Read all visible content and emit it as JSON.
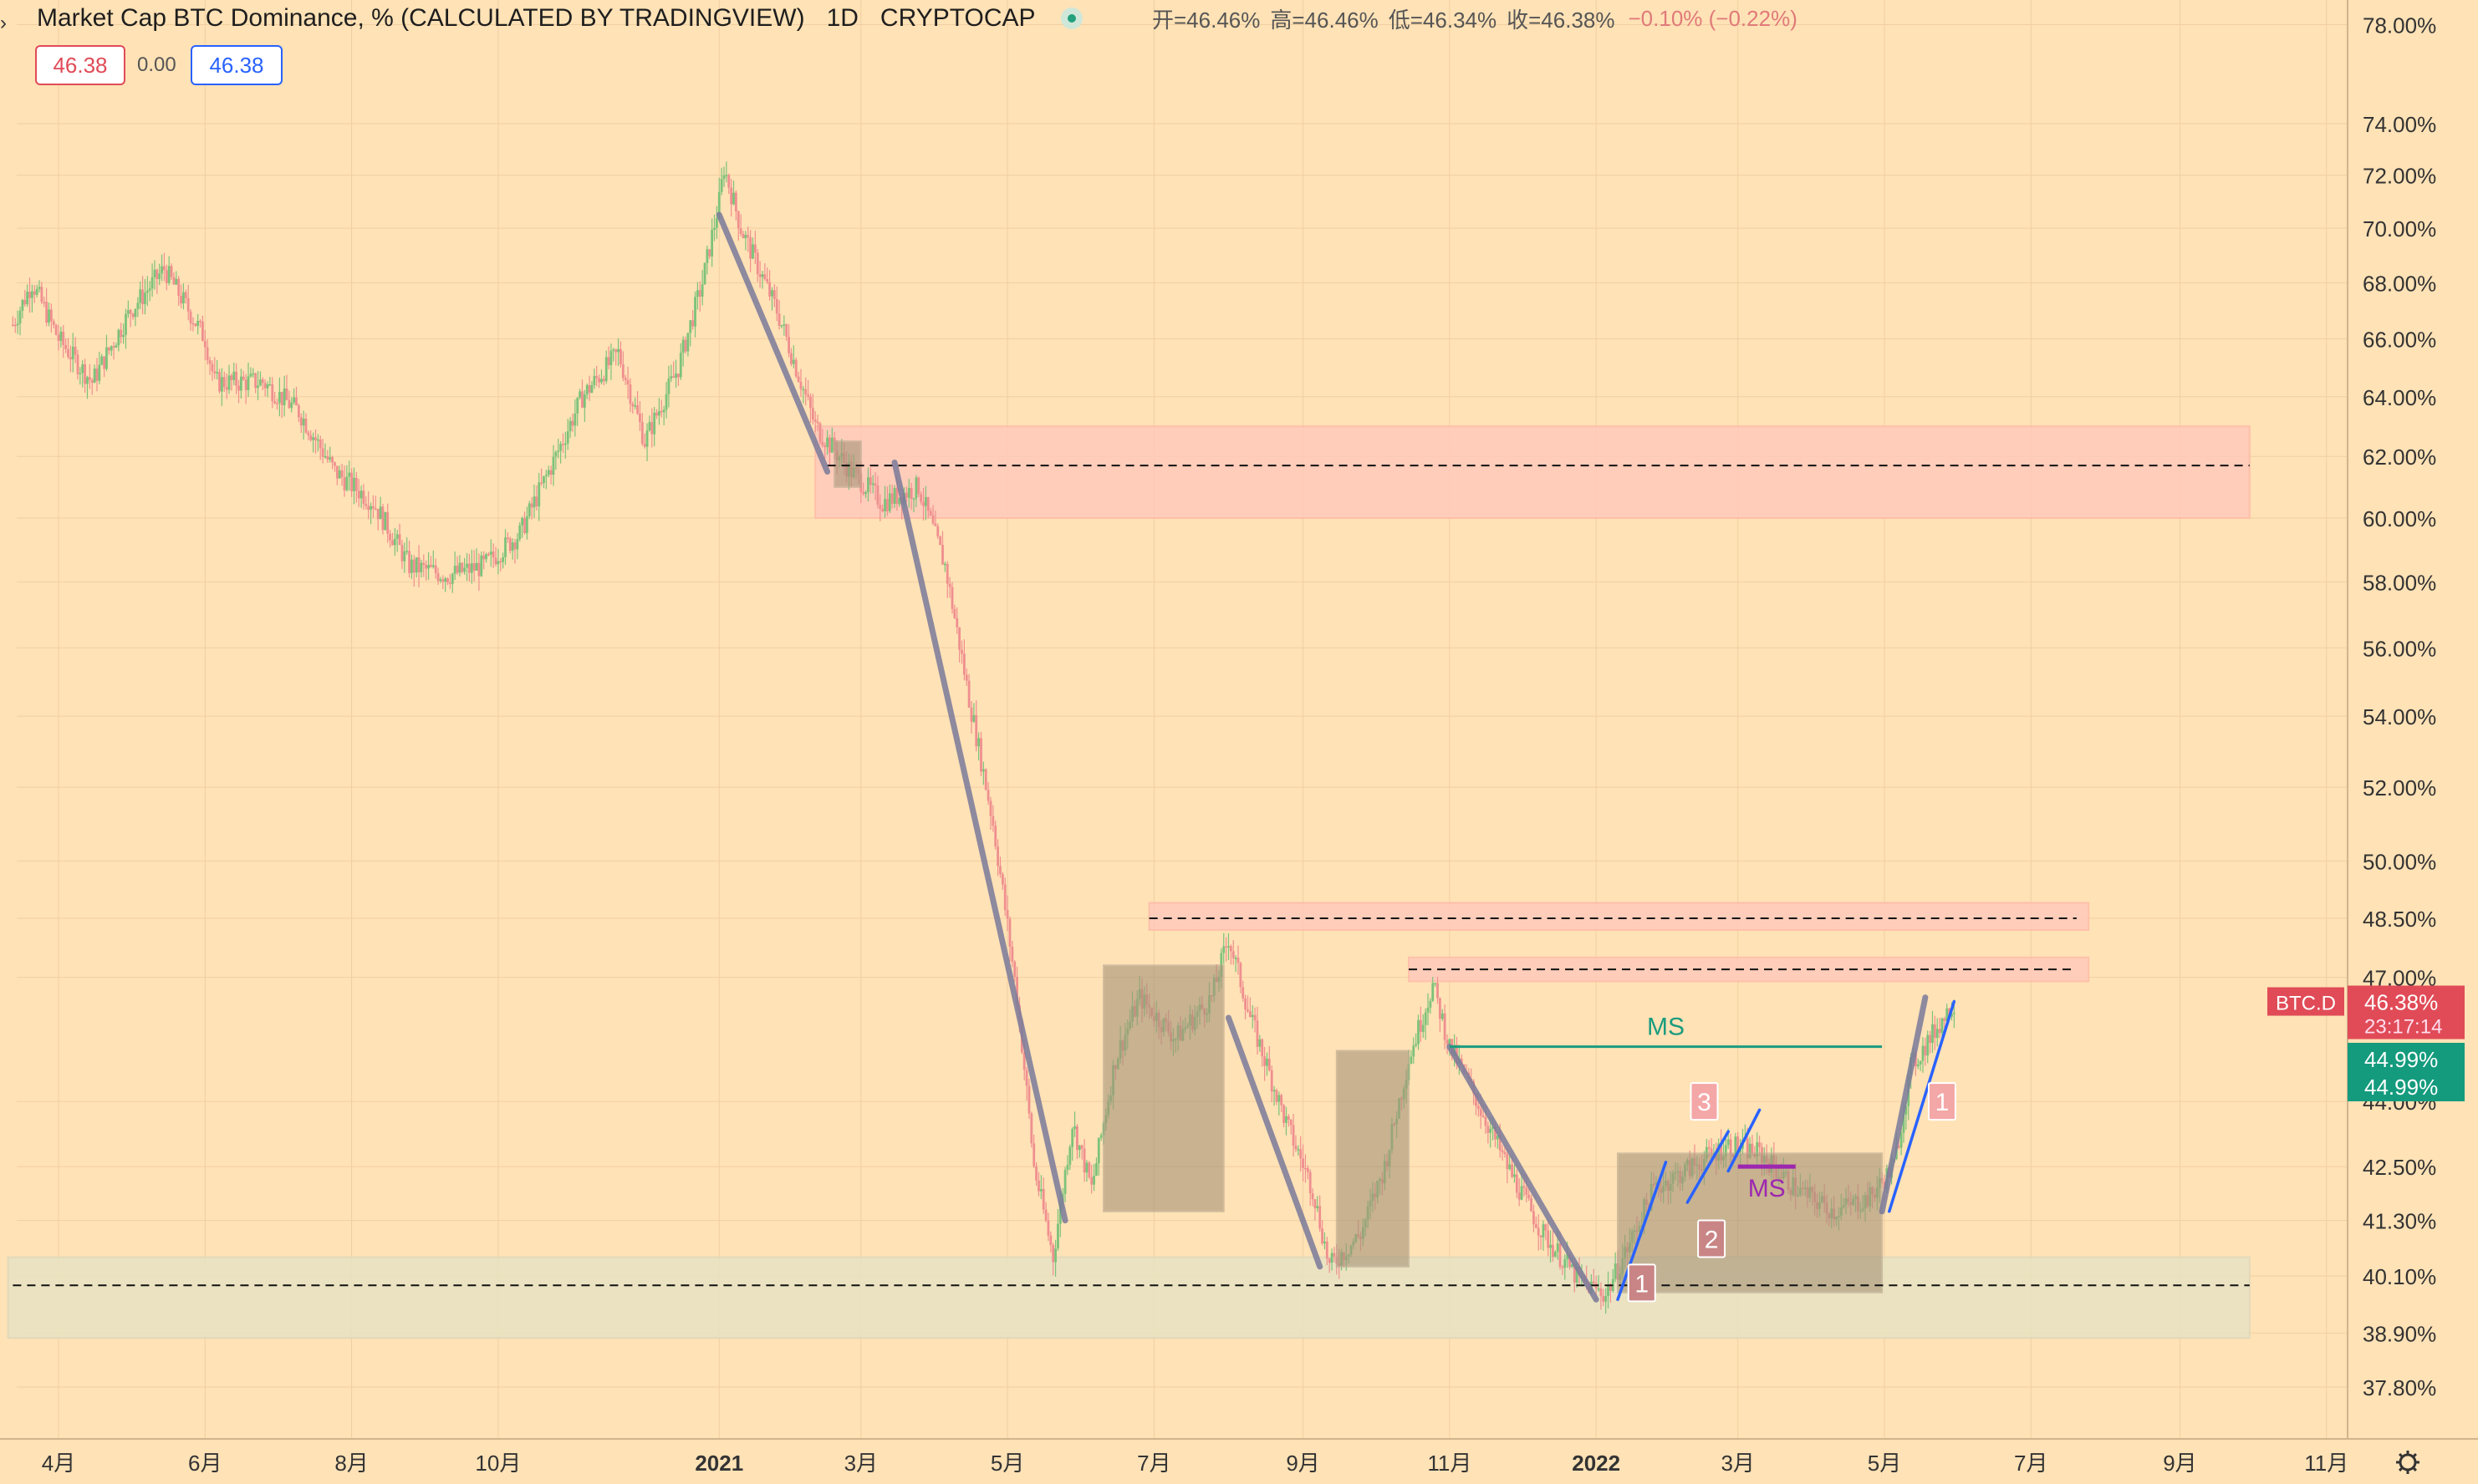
{
  "header": {
    "title": "Market Cap BTC Dominance, % (CALCULATED BY TRADINGVIEW)",
    "interval": "1D",
    "exchange": "CRYPTOCAP",
    "open_label": "开=46.46%",
    "high_label": "高=46.46%",
    "low_label": "低=46.34%",
    "close_label": "收=46.38%",
    "change": "−0.10% (−0.22%)"
  },
  "price_boxes": {
    "sell": "46.38",
    "spread": "0.00",
    "buy": "46.38"
  },
  "price_tags": {
    "symbol": "BTC.D",
    "last": "46.38%",
    "countdown": "23:17:14",
    "ma1": "44.99%",
    "ma2": "44.99%"
  },
  "annotations": {
    "ms_top": "MS",
    "ms_mid": "MS",
    "n1a": "1",
    "n2": "2",
    "n3": "3",
    "n1b": "1"
  },
  "colors": {
    "background": "#ffe2b6",
    "up_candle": "#7cc27a",
    "down_candle": "#ef8f8f",
    "resistance_zone": "#ffc9bb",
    "support_zone": "#e8e3c3",
    "consolidation_box": "#a8957a",
    "trend_line": "#7a7a9a",
    "wave_line": "#2962ff",
    "ms_line_green": "#1a9c7f",
    "ms_line_purple": "#9c27b0",
    "label_red": "#e04b57",
    "label_green": "#149b7d"
  },
  "chart_data": {
    "type": "candlestick",
    "symbol": "BTC.D",
    "scale": "log",
    "y_ticks": [
      "78.00%",
      "74.00%",
      "72.00%",
      "70.00%",
      "68.00%",
      "66.00%",
      "64.00%",
      "62.00%",
      "60.00%",
      "58.00%",
      "56.00%",
      "54.00%",
      "52.00%",
      "50.00%",
      "48.50%",
      "47.00%",
      "44.00%",
      "42.50%",
      "41.30%",
      "40.10%",
      "38.90%",
      "37.80%"
    ],
    "x_ticks": [
      {
        "label": "4月",
        "date": "2020-04-01"
      },
      {
        "label": "6月",
        "date": "2020-06-01"
      },
      {
        "label": "8月",
        "date": "2020-08-01"
      },
      {
        "label": "10月",
        "date": "2020-10-01"
      },
      {
        "label": "2021",
        "date": "2021-01-01",
        "bold": true
      },
      {
        "label": "3月",
        "date": "2021-03-01"
      },
      {
        "label": "5月",
        "date": "2021-05-01"
      },
      {
        "label": "7月",
        "date": "2021-07-01"
      },
      {
        "label": "9月",
        "date": "2021-09-01"
      },
      {
        "label": "11月",
        "date": "2021-11-01"
      },
      {
        "label": "2022",
        "date": "2022-01-01",
        "bold": true
      },
      {
        "label": "3月",
        "date": "2022-03-01"
      },
      {
        "label": "5月",
        "date": "2022-05-01"
      },
      {
        "label": "7月",
        "date": "2022-07-01"
      },
      {
        "label": "9月",
        "date": "2022-09-01"
      },
      {
        "label": "11月",
        "date": "2022-11-01"
      }
    ],
    "price_path": [
      [
        "2020-03-13",
        66.5
      ],
      [
        "2020-03-21",
        68.0
      ],
      [
        "2020-04-01",
        66.0
      ],
      [
        "2020-04-15",
        64.5
      ],
      [
        "2020-05-01",
        67.0
      ],
      [
        "2020-05-15",
        68.5
      ],
      [
        "2020-06-01",
        66.0
      ],
      [
        "2020-06-05",
        64.5
      ],
      [
        "2020-06-25",
        64.5
      ],
      [
        "2020-07-10",
        63.5
      ],
      [
        "2020-07-25",
        61.5
      ],
      [
        "2020-08-10",
        60.5
      ],
      [
        "2020-08-25",
        58.5
      ],
      [
        "2020-09-10",
        58.2
      ],
      [
        "2020-09-25",
        58.5
      ],
      [
        "2020-10-10",
        59.5
      ],
      [
        "2020-10-25",
        62.0
      ],
      [
        "2020-11-05",
        64.0
      ],
      [
        "2020-11-20",
        65.5
      ],
      [
        "2020-12-01",
        62.5
      ],
      [
        "2020-12-15",
        65.0
      ],
      [
        "2020-12-25",
        68.0
      ],
      [
        "2021-01-01",
        71.0
      ],
      [
        "2021-01-03",
        72.3
      ],
      [
        "2021-01-10",
        70.0
      ],
      [
        "2021-01-25",
        67.0
      ],
      [
        "2021-02-10",
        63.0
      ],
      [
        "2021-02-25",
        61.5
      ],
      [
        "2021-03-10",
        60.5
      ],
      [
        "2021-03-25",
        61.0
      ],
      [
        "2021-04-05",
        58.5
      ],
      [
        "2021-04-15",
        54.5
      ],
      [
        "2021-04-25",
        51.0
      ],
      [
        "2021-05-05",
        46.5
      ],
      [
        "2021-05-12",
        42.5
      ],
      [
        "2021-05-20",
        40.5
      ],
      [
        "2021-05-28",
        43.5
      ],
      [
        "2021-06-05",
        42.0
      ],
      [
        "2021-06-15",
        45.0
      ],
      [
        "2021-06-25",
        46.5
      ],
      [
        "2021-07-10",
        45.5
      ],
      [
        "2021-07-25",
        46.5
      ],
      [
        "2021-08-01",
        48.0
      ],
      [
        "2021-08-10",
        46.0
      ],
      [
        "2021-08-25",
        43.5
      ],
      [
        "2021-09-05",
        42.0
      ],
      [
        "2021-09-12",
        40.3
      ],
      [
        "2021-09-25",
        41.0
      ],
      [
        "2021-10-05",
        42.5
      ],
      [
        "2021-10-15",
        45.0
      ],
      [
        "2021-10-25",
        46.8
      ],
      [
        "2021-11-01",
        45.3
      ],
      [
        "2021-11-10",
        44.3
      ],
      [
        "2021-11-25",
        42.5
      ],
      [
        "2021-12-10",
        41.0
      ],
      [
        "2021-12-25",
        40.0
      ],
      [
        "2022-01-05",
        39.7
      ],
      [
        "2022-01-15",
        40.8
      ],
      [
        "2022-01-25",
        42.0
      ],
      [
        "2022-02-10",
        42.5
      ],
      [
        "2022-02-25",
        43.0
      ],
      [
        "2022-03-10",
        42.8
      ],
      [
        "2022-03-25",
        42.0
      ],
      [
        "2022-04-10",
        41.5
      ],
      [
        "2022-04-25",
        41.8
      ],
      [
        "2022-05-05",
        42.5
      ],
      [
        "2022-05-12",
        44.8
      ],
      [
        "2022-05-20",
        45.5
      ],
      [
        "2022-05-30",
        46.4
      ]
    ],
    "zones": [
      {
        "from": "2021-02-10",
        "to": "2022-09-30",
        "top": 63.0,
        "bottom": 60.0,
        "kind": "resistance"
      },
      {
        "from": "2021-06-29",
        "to": "2022-07-25",
        "top": 48.9,
        "bottom": 48.2,
        "kind": "resistance"
      },
      {
        "from": "2021-10-15",
        "to": "2022-07-25",
        "top": 47.5,
        "bottom": 46.9,
        "kind": "resistance"
      },
      {
        "from": "2020-03-11",
        "to": "2022-09-30",
        "top": 40.5,
        "bottom": 38.8,
        "kind": "support"
      }
    ],
    "boxes": [
      {
        "from": "2021-02-18",
        "to": "2021-03-01",
        "top": 62.5,
        "bottom": 61.0
      },
      {
        "from": "2021-06-10",
        "to": "2021-07-30",
        "top": 47.3,
        "bottom": 41.5
      },
      {
        "from": "2021-09-15",
        "to": "2021-10-15",
        "top": 45.2,
        "bottom": 40.3
      },
      {
        "from": "2022-01-10",
        "to": "2022-04-30",
        "top": 42.8,
        "bottom": 39.75
      }
    ],
    "levels": [
      {
        "value": 61.7,
        "from": "2021-02-15",
        "to": "2022-09-30"
      },
      {
        "value": 48.5,
        "from": "2021-06-29",
        "to": "2022-07-20"
      },
      {
        "value": 47.2,
        "from": "2021-10-15",
        "to": "2022-07-20"
      },
      {
        "value": 39.9,
        "from": "2020-03-13",
        "to": "2022-09-30"
      }
    ],
    "trend_lines": [
      [
        [
          "2021-01-01",
          70.5
        ],
        [
          "2021-02-15",
          61.5
        ]
      ],
      [
        [
          "2021-03-15",
          61.8
        ],
        [
          "2021-05-25",
          41.3
        ]
      ],
      [
        [
          "2021-08-01",
          46.0
        ],
        [
          "2021-09-08",
          40.3
        ]
      ],
      [
        [
          "2021-11-01",
          45.3
        ],
        [
          "2022-01-01",
          39.6
        ]
      ],
      [
        [
          "2022-04-30",
          41.5
        ],
        [
          "2022-05-18",
          46.5
        ]
      ]
    ],
    "wave_lines": [
      [
        [
          "2022-01-10",
          39.6
        ],
        [
          "2022-01-30",
          42.6
        ]
      ],
      [
        [
          "2022-02-08",
          41.7
        ],
        [
          "2022-02-25",
          43.3
        ]
      ],
      [
        [
          "2022-02-25",
          42.4
        ],
        [
          "2022-03-10",
          43.8
        ]
      ],
      [
        [
          "2022-05-03",
          41.5
        ],
        [
          "2022-05-30",
          46.4
        ]
      ]
    ],
    "ms_lines": [
      {
        "label_key": "ms_top",
        "from": "2021-11-01",
        "to": "2022-04-30",
        "value": 45.3,
        "color": "#1a9c7f"
      },
      {
        "label_key": "ms_mid",
        "from": "2022-03-01",
        "to": "2022-03-25",
        "value": 42.5,
        "color": "#9c27b0"
      }
    ],
    "wave_labels": [
      {
        "key": "n1a",
        "date": "2022-01-20",
        "value": 39.95,
        "style": "dark"
      },
      {
        "key": "n2",
        "date": "2022-02-18",
        "value": 40.9,
        "style": "dark"
      },
      {
        "key": "n3",
        "date": "2022-02-15",
        "value": 44.0,
        "style": "light"
      },
      {
        "key": "n1b",
        "date": "2022-05-25",
        "value": 44.0,
        "style": "light"
      }
    ]
  }
}
